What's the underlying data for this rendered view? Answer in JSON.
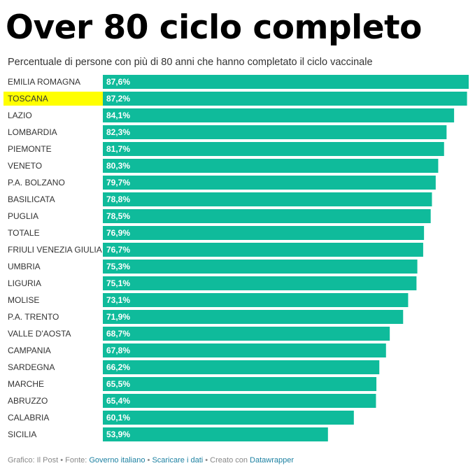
{
  "header": {
    "title": "Over 80 ciclo completo",
    "subtitle": "Percentuale di persone con più di 80 anni che hanno completato il ciclo vaccinale"
  },
  "chart_data": {
    "type": "bar",
    "orientation": "horizontal",
    "title": "Over 80 ciclo completo",
    "subtitle": "Percentuale di persone con più di 80 anni che hanno completato il ciclo vaccinale",
    "categories": [
      "EMILIA ROMAGNA",
      "TOSCANA",
      "LAZIO",
      "LOMBARDIA",
      "PIEMONTE",
      "VENETO",
      "P.A. BOLZANO",
      "BASILICATA",
      "PUGLIA",
      "TOTALE",
      "FRIULI VENEZIA GIULIA",
      "UMBRIA",
      "LIGURIA",
      "MOLISE",
      "P.A. TRENTO",
      "VALLE D'AOSTA",
      "CAMPANIA",
      "SARDEGNA",
      "MARCHE",
      "ABRUZZO",
      "CALABRIA",
      "SICILIA"
    ],
    "values": [
      87.6,
      87.2,
      84.1,
      82.3,
      81.7,
      80.3,
      79.7,
      78.8,
      78.5,
      76.9,
      76.7,
      75.3,
      75.1,
      73.1,
      71.9,
      68.7,
      67.8,
      66.2,
      65.5,
      65.4,
      60.1,
      53.9
    ],
    "value_labels": [
      "87,6%",
      "87,2%",
      "84,1%",
      "82,3%",
      "81,7%",
      "80,3%",
      "79,7%",
      "78,8%",
      "78,5%",
      "76,9%",
      "76,7%",
      "75,3%",
      "75,1%",
      "73,1%",
      "71,9%",
      "68,7%",
      "67,8%",
      "66,2%",
      "65,5%",
      "65,4%",
      "60,1%",
      "53,9%"
    ],
    "highlighted_category": "TOSCANA",
    "xlim": [
      0,
      87.6
    ],
    "grid": false,
    "legend": "none",
    "colors": {
      "bar": "#0fbb9b",
      "highlight": "#ffff00",
      "label_text": "#333333",
      "value_text": "#ffffff"
    }
  },
  "footer": {
    "credit": "Grafico: Il Post",
    "separator": " • ",
    "source_label": "Fonte: ",
    "source_link": "Governo italiano",
    "data_link": "Scaricare i dati",
    "created_with": "Creato con ",
    "tool_link": "Datawrapper"
  }
}
